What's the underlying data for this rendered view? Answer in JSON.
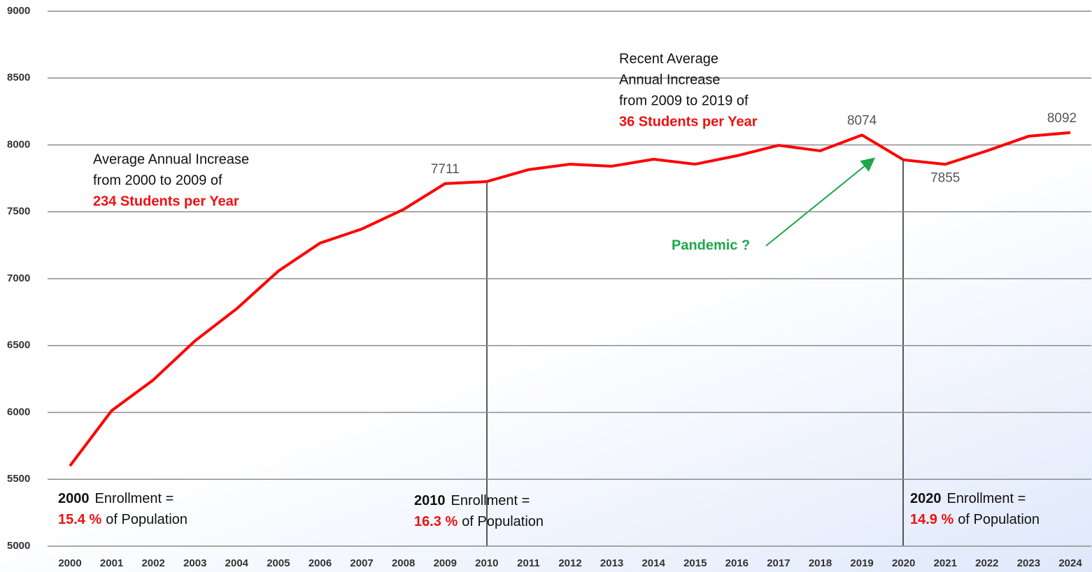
{
  "chart_data": {
    "type": "line",
    "categories": [
      "2000",
      "2001",
      "2002",
      "2003",
      "2004",
      "2005",
      "2006",
      "2007",
      "2008",
      "2009",
      "2010",
      "2011",
      "2012",
      "2013",
      "2014",
      "2015",
      "2016",
      "2017",
      "2018",
      "2019",
      "2020",
      "2021",
      "2022",
      "2023",
      "2024"
    ],
    "series": [
      {
        "color": "#ff0000",
        "values": [
          5600,
          6013,
          6243,
          6535,
          6775,
          7057,
          7266,
          7371,
          7517,
          7711,
          7726,
          7815,
          7856,
          7841,
          7893,
          7856,
          7919,
          7997,
          7956,
          8074,
          7888,
          7855,
          7956,
          8065,
          8092
        ],
        "value_labels": [
          null,
          null,
          null,
          null,
          null,
          null,
          null,
          null,
          null,
          "7711",
          null,
          null,
          null,
          null,
          null,
          null,
          null,
          null,
          null,
          "8074",
          null,
          "7855",
          null,
          null,
          "8092"
        ]
      }
    ],
    "ylim": [
      5000,
      9000
    ],
    "yticks": [
      5000,
      5500,
      6000,
      6500,
      7000,
      7500,
      8000,
      8500,
      9000
    ],
    "grid": true,
    "annotations": {
      "early": [
        "Average Annual Increase",
        "from 2000 to 2009 of",
        "234 Students per Year"
      ],
      "recent": [
        "Recent Average",
        "Annual Increase",
        "from 2009 to 2019 of",
        "36 Students per Year"
      ],
      "pandemic": "Pandemic ?",
      "enrollment": [
        {
          "year": "2000",
          "text": "Enrollment =",
          "pct": "15.4 %",
          "rest": "of Population"
        },
        {
          "year": "2010",
          "text": "Enrollment =",
          "pct": "16.3 %",
          "rest": "of Population"
        },
        {
          "year": "2020",
          "text": "Enrollment =",
          "pct": "14.9 %",
          "rest": "of Population"
        }
      ]
    }
  }
}
